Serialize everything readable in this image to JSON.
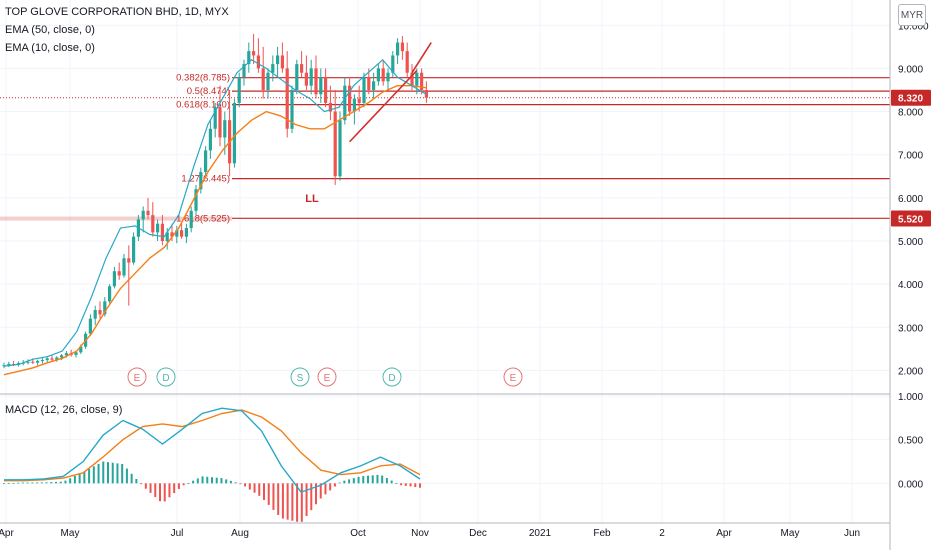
{
  "header": {
    "title": "TOP GLOVE CORPORATION BHD, 1D, MYX",
    "ema50_label": "EMA (50, close, 0)",
    "ema10_label": "EMA (10, close, 0)",
    "currency_badge": "MYR",
    "macd_label": "MACD (12, 26, close, 9)"
  },
  "colors": {
    "ema50": "#f57f17",
    "ema10": "#26a8c8",
    "up": "#26a69a",
    "down": "#ef5350",
    "level": "#c62828",
    "trendline": "#d32f2f",
    "macd": "#26a8c8",
    "signal": "#f57f17",
    "event_e": "#e57373",
    "event_d": "#4db6ac"
  },
  "chart_data": [
    {
      "type": "candlestick",
      "ylim": [
        1.5,
        10.4
      ],
      "y_ticks": [
        "10.000",
        "9.000",
        "8.000",
        "7.000",
        "6.000",
        "5.000",
        "4.000",
        "3.000",
        "2.000"
      ],
      "x_ticks": [
        "Apr",
        "May",
        "Jul",
        "Aug",
        "Oct",
        "Nov",
        "Dec",
        "2021",
        "Feb",
        "2",
        "Apr",
        "May",
        "Jun"
      ],
      "current_price": {
        "value": 8.32,
        "label": "8.320"
      },
      "marked_price": {
        "value": 5.52,
        "label": "5.520"
      },
      "fib_levels": [
        {
          "label": "0.382(8.785)",
          "value": 8.785
        },
        {
          "label": "0.5(8.474)",
          "value": 8.474
        },
        {
          "label": "0.618(8.160)",
          "value": 8.16
        },
        {
          "label": "1.27(6.445)",
          "value": 6.445
        },
        {
          "label": "1.618(5.525)",
          "value": 5.525
        }
      ],
      "annotation": "LL",
      "events": [
        "E",
        "D",
        "S",
        "E",
        "D",
        "E"
      ],
      "candles": [
        {
          "o": 2.1,
          "h": 2.18,
          "l": 2.05,
          "c": 2.12
        },
        {
          "o": 2.12,
          "h": 2.2,
          "l": 2.08,
          "c": 2.15
        },
        {
          "o": 2.15,
          "h": 2.22,
          "l": 2.1,
          "c": 2.13
        },
        {
          "o": 2.13,
          "h": 2.21,
          "l": 2.09,
          "c": 2.17
        },
        {
          "o": 2.17,
          "h": 2.24,
          "l": 2.12,
          "c": 2.18
        },
        {
          "o": 2.18,
          "h": 2.26,
          "l": 2.14,
          "c": 2.2
        },
        {
          "o": 2.2,
          "h": 2.28,
          "l": 2.15,
          "c": 2.18
        },
        {
          "o": 2.18,
          "h": 2.25,
          "l": 2.12,
          "c": 2.22
        },
        {
          "o": 2.22,
          "h": 2.3,
          "l": 2.16,
          "c": 2.24
        },
        {
          "o": 2.24,
          "h": 2.32,
          "l": 2.18,
          "c": 2.28
        },
        {
          "o": 2.28,
          "h": 2.35,
          "l": 2.2,
          "c": 2.25
        },
        {
          "o": 2.25,
          "h": 2.33,
          "l": 2.2,
          "c": 2.3
        },
        {
          "o": 2.3,
          "h": 2.38,
          "l": 2.24,
          "c": 2.35
        },
        {
          "o": 2.35,
          "h": 2.45,
          "l": 2.3,
          "c": 2.4
        },
        {
          "o": 2.4,
          "h": 2.48,
          "l": 2.32,
          "c": 2.36
        },
        {
          "o": 2.36,
          "h": 2.46,
          "l": 2.3,
          "c": 2.42
        },
        {
          "o": 2.42,
          "h": 2.6,
          "l": 2.38,
          "c": 2.55
        },
        {
          "o": 2.55,
          "h": 2.9,
          "l": 2.5,
          "c": 2.85
        },
        {
          "o": 2.85,
          "h": 3.3,
          "l": 2.8,
          "c": 3.2
        },
        {
          "o": 3.2,
          "h": 3.5,
          "l": 3.05,
          "c": 3.4
        },
        {
          "o": 3.4,
          "h": 3.6,
          "l": 3.2,
          "c": 3.3
        },
        {
          "o": 3.3,
          "h": 3.7,
          "l": 3.25,
          "c": 3.6
        },
        {
          "o": 3.6,
          "h": 4.0,
          "l": 3.55,
          "c": 3.95
        },
        {
          "o": 3.95,
          "h": 4.4,
          "l": 3.9,
          "c": 4.3
        },
        {
          "o": 4.3,
          "h": 4.5,
          "l": 4.1,
          "c": 4.2
        },
        {
          "o": 4.2,
          "h": 4.7,
          "l": 4.15,
          "c": 4.6
        },
        {
          "o": 4.6,
          "h": 4.9,
          "l": 3.5,
          "c": 4.5
        },
        {
          "o": 4.5,
          "h": 5.2,
          "l": 4.45,
          "c": 5.1
        },
        {
          "o": 5.1,
          "h": 5.6,
          "l": 5.0,
          "c": 5.5
        },
        {
          "o": 5.5,
          "h": 5.8,
          "l": 5.2,
          "c": 5.7
        },
        {
          "o": 5.7,
          "h": 6.0,
          "l": 5.5,
          "c": 5.6
        },
        {
          "o": 5.6,
          "h": 5.9,
          "l": 5.1,
          "c": 5.2
        },
        {
          "o": 5.2,
          "h": 5.5,
          "l": 5.0,
          "c": 5.4
        },
        {
          "o": 5.4,
          "h": 5.6,
          "l": 4.9,
          "c": 5.0
        },
        {
          "o": 5.0,
          "h": 5.3,
          "l": 4.8,
          "c": 5.2
        },
        {
          "o": 5.2,
          "h": 5.4,
          "l": 5.0,
          "c": 5.1
        },
        {
          "o": 5.1,
          "h": 5.35,
          "l": 4.95,
          "c": 5.25
        },
        {
          "o": 5.25,
          "h": 5.45,
          "l": 5.05,
          "c": 5.1
        },
        {
          "o": 5.1,
          "h": 5.4,
          "l": 4.95,
          "c": 5.3
        },
        {
          "o": 5.3,
          "h": 5.8,
          "l": 5.2,
          "c": 5.7
        },
        {
          "o": 5.7,
          "h": 6.3,
          "l": 5.6,
          "c": 6.2
        },
        {
          "o": 6.2,
          "h": 6.7,
          "l": 6.1,
          "c": 6.6
        },
        {
          "o": 6.6,
          "h": 7.2,
          "l": 6.5,
          "c": 7.1
        },
        {
          "o": 7.1,
          "h": 7.8,
          "l": 6.9,
          "c": 7.6
        },
        {
          "o": 7.6,
          "h": 8.2,
          "l": 7.4,
          "c": 8.1
        },
        {
          "o": 8.1,
          "h": 8.6,
          "l": 7.2,
          "c": 7.4
        },
        {
          "o": 7.4,
          "h": 8.0,
          "l": 7.0,
          "c": 7.8
        },
        {
          "o": 7.8,
          "h": 8.5,
          "l": 6.5,
          "c": 6.8
        },
        {
          "o": 6.8,
          "h": 8.3,
          "l": 6.7,
          "c": 8.2
        },
        {
          "o": 8.2,
          "h": 8.9,
          "l": 8.1,
          "c": 8.8
        },
        {
          "o": 8.8,
          "h": 9.2,
          "l": 8.6,
          "c": 9.1
        },
        {
          "o": 9.1,
          "h": 9.6,
          "l": 8.9,
          "c": 9.4
        },
        {
          "o": 9.4,
          "h": 9.8,
          "l": 9.1,
          "c": 9.3
        },
        {
          "o": 9.3,
          "h": 9.7,
          "l": 8.9,
          "c": 9.0
        },
        {
          "o": 9.0,
          "h": 9.5,
          "l": 8.3,
          "c": 8.5
        },
        {
          "o": 8.5,
          "h": 9.0,
          "l": 8.3,
          "c": 8.9
        },
        {
          "o": 8.9,
          "h": 9.3,
          "l": 8.7,
          "c": 9.1
        },
        {
          "o": 9.1,
          "h": 9.5,
          "l": 8.8,
          "c": 9.3
        },
        {
          "o": 9.3,
          "h": 9.6,
          "l": 8.9,
          "c": 9.0
        },
        {
          "o": 9.0,
          "h": 9.4,
          "l": 7.4,
          "c": 7.6
        },
        {
          "o": 7.6,
          "h": 8.6,
          "l": 7.5,
          "c": 8.5
        },
        {
          "o": 8.5,
          "h": 9.2,
          "l": 8.4,
          "c": 9.1
        },
        {
          "o": 9.1,
          "h": 9.4,
          "l": 8.8,
          "c": 8.9
        },
        {
          "o": 8.9,
          "h": 9.3,
          "l": 8.5,
          "c": 8.6
        },
        {
          "o": 8.6,
          "h": 9.2,
          "l": 8.4,
          "c": 9.0
        },
        {
          "o": 9.0,
          "h": 9.3,
          "l": 8.3,
          "c": 8.4
        },
        {
          "o": 8.4,
          "h": 9.0,
          "l": 8.2,
          "c": 8.8
        },
        {
          "o": 8.8,
          "h": 9.0,
          "l": 8.1,
          "c": 8.2
        },
        {
          "o": 8.2,
          "h": 8.6,
          "l": 7.8,
          "c": 8.0
        },
        {
          "o": 8.0,
          "h": 8.5,
          "l": 6.3,
          "c": 6.5
        },
        {
          "o": 6.5,
          "h": 8.0,
          "l": 6.4,
          "c": 7.8
        },
        {
          "o": 7.8,
          "h": 8.8,
          "l": 7.7,
          "c": 8.6
        },
        {
          "o": 8.6,
          "h": 8.8,
          "l": 7.9,
          "c": 8.0
        },
        {
          "o": 8.0,
          "h": 8.4,
          "l": 7.7,
          "c": 8.3
        },
        {
          "o": 8.3,
          "h": 8.6,
          "l": 8.0,
          "c": 8.2
        },
        {
          "o": 8.2,
          "h": 8.9,
          "l": 8.1,
          "c": 8.8
        },
        {
          "o": 8.8,
          "h": 9.0,
          "l": 8.4,
          "c": 8.5
        },
        {
          "o": 8.5,
          "h": 8.9,
          "l": 8.3,
          "c": 8.7
        },
        {
          "o": 8.7,
          "h": 9.1,
          "l": 8.6,
          "c": 9.0
        },
        {
          "o": 9.0,
          "h": 9.2,
          "l": 8.6,
          "c": 8.7
        },
        {
          "o": 8.7,
          "h": 9.0,
          "l": 8.5,
          "c": 8.9
        },
        {
          "o": 8.9,
          "h": 9.4,
          "l": 8.8,
          "c": 9.3
        },
        {
          "o": 9.3,
          "h": 9.7,
          "l": 9.1,
          "c": 9.6
        },
        {
          "o": 9.6,
          "h": 9.75,
          "l": 9.2,
          "c": 9.4
        },
        {
          "o": 9.4,
          "h": 9.6,
          "l": 8.8,
          "c": 8.9
        },
        {
          "o": 8.9,
          "h": 9.1,
          "l": 8.5,
          "c": 8.6
        },
        {
          "o": 8.6,
          "h": 9.0,
          "l": 8.4,
          "c": 8.9
        },
        {
          "o": 8.9,
          "h": 9.0,
          "l": 8.4,
          "c": 8.5
        },
        {
          "o": 8.5,
          "h": 8.7,
          "l": 8.2,
          "c": 8.32
        }
      ],
      "ema10": [
        2.1,
        2.14,
        2.26,
        2.32,
        2.45,
        2.9,
        3.7,
        4.6,
        5.3,
        5.35,
        5.15,
        5.1,
        5.6,
        6.7,
        7.7,
        8.3,
        8.9,
        9.2,
        9.0,
        8.75,
        8.5,
        8.3,
        8.0,
        8.1,
        8.6,
        8.9,
        9.2,
        8.8,
        8.6,
        8.4
      ],
      "ema50": [
        1.9,
        1.98,
        2.06,
        2.18,
        2.28,
        2.45,
        2.85,
        3.4,
        3.9,
        4.25,
        4.6,
        4.85,
        5.3,
        5.95,
        6.6,
        7.1,
        7.5,
        7.8,
        8.0,
        7.9,
        7.7,
        7.6,
        7.6,
        7.8,
        8.0,
        8.2,
        8.45,
        8.6,
        8.6,
        8.55
      ],
      "trendlines": [
        {
          "from": {
            "index": 72,
            "value": 7.3
          },
          "to": {
            "index": 86,
            "value": 8.95
          }
        },
        {
          "from": {
            "index": 85,
            "value": 8.9
          },
          "to": {
            "index": 89,
            "value": 9.6
          }
        }
      ]
    },
    {
      "type": "macd",
      "ylim": [
        -0.42,
        1.0
      ],
      "y_ticks": [
        "1.000",
        "0.500",
        "0.000"
      ],
      "macd": [
        0.04,
        0.04,
        0.05,
        0.08,
        0.25,
        0.55,
        0.72,
        0.62,
        0.45,
        0.62,
        0.8,
        0.86,
        0.83,
        0.6,
        0.2,
        -0.1,
        -0.02,
        0.12,
        0.2,
        0.3,
        0.2,
        0.05
      ],
      "signal": [
        0.03,
        0.03,
        0.04,
        0.06,
        0.12,
        0.3,
        0.5,
        0.65,
        0.68,
        0.65,
        0.72,
        0.8,
        0.84,
        0.76,
        0.6,
        0.35,
        0.15,
        0.1,
        0.12,
        0.2,
        0.22,
        0.1
      ],
      "histogram": [
        0,
        0.01,
        0.01,
        0.02,
        0.13,
        0.25,
        0.22,
        -0.03,
        -0.23,
        -0.03,
        0.08,
        0.06,
        -0.01,
        -0.16,
        -0.4,
        -0.45,
        -0.17,
        0.02,
        0.08,
        0.1,
        -0.02,
        -0.05
      ]
    }
  ]
}
